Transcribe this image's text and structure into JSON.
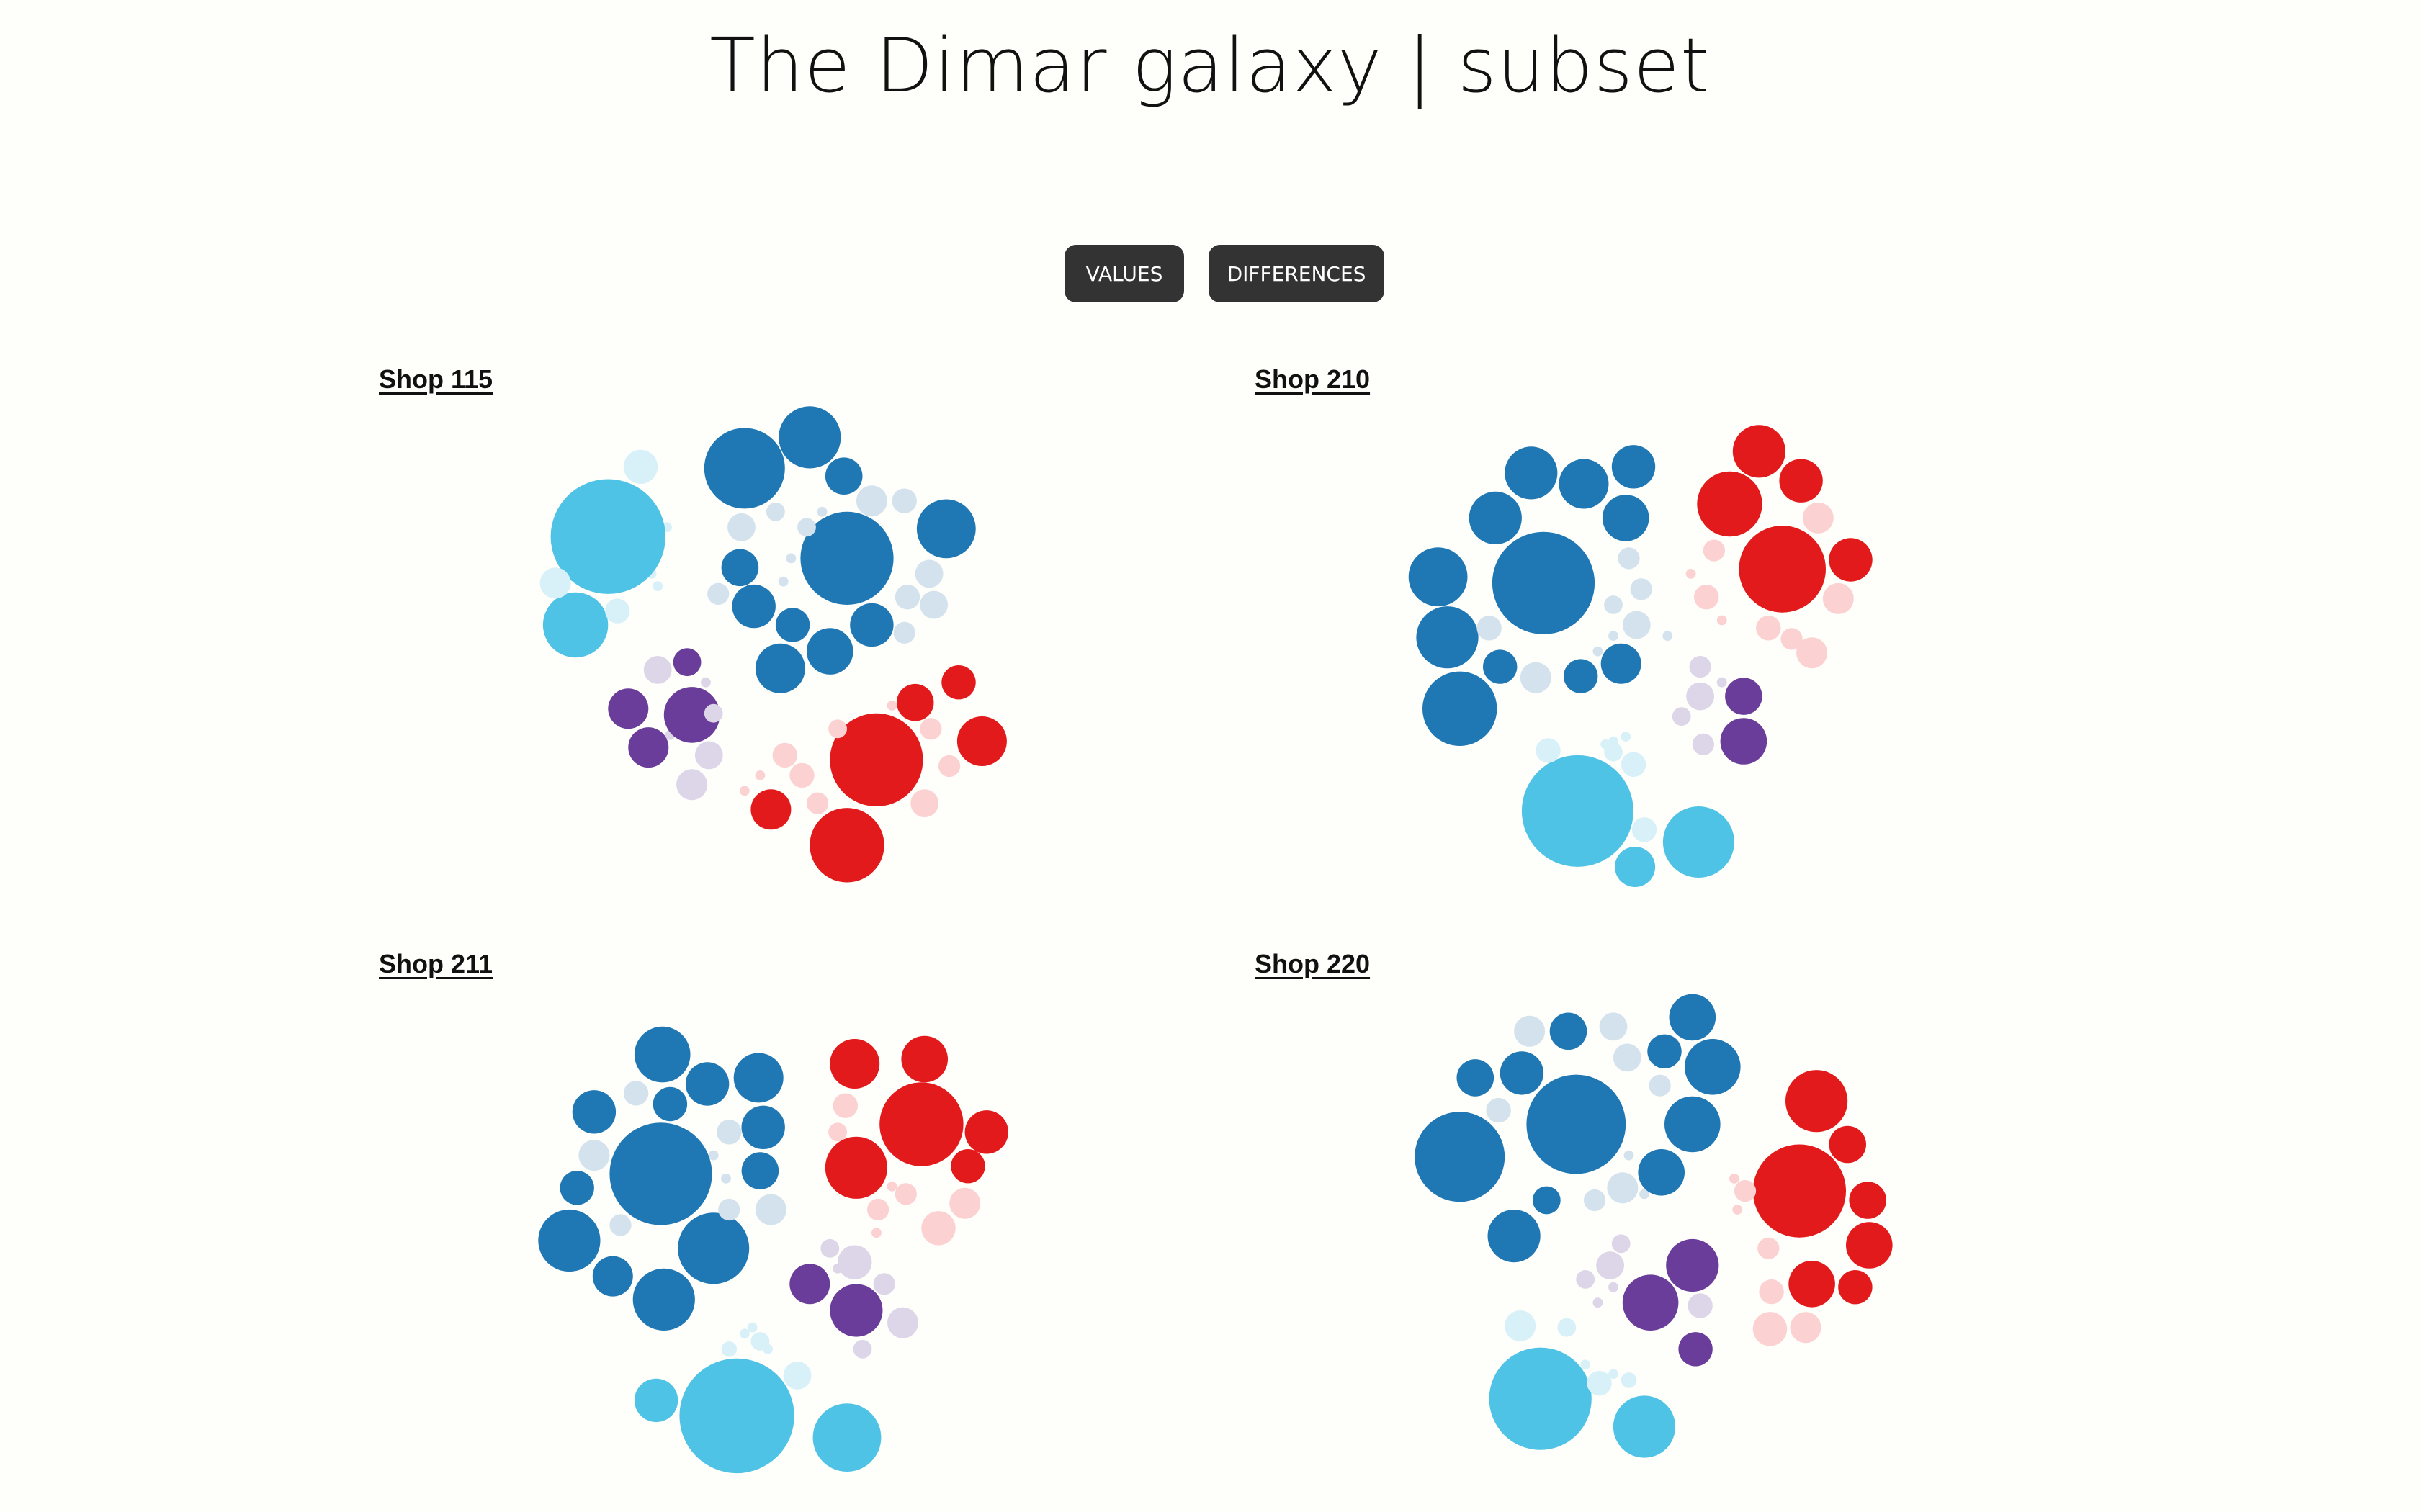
{
  "title": "The Dimar galaxy | subset",
  "buttons": {
    "values": "VALUES",
    "differences": "DIFFERENCES"
  },
  "colors": {
    "dark_blue": "#1f77b4",
    "light_blue_pale": "#d3e2ec",
    "cyan": "#4ec3e6",
    "cyan_pale": "#d8f1f8",
    "red": "#e31a1c",
    "red_pale": "#fbd1d2",
    "purple": "#6a3d9a",
    "purple_pale": "#ddd5e8"
  },
  "chart_data": [
    {
      "type": "packed-bubble",
      "title": "Shop 115",
      "clusters": [
        {
          "color": "dark_blue",
          "count": 16
        },
        {
          "color": "cyan",
          "count": 2
        },
        {
          "color": "red",
          "count": 5
        },
        {
          "color": "purple",
          "count": 4
        }
      ]
    },
    {
      "type": "packed-bubble",
      "title": "Shop 210",
      "clusters": [
        {
          "color": "dark_blue",
          "count": 15
        },
        {
          "color": "red",
          "count": 5
        },
        {
          "color": "purple",
          "count": 2
        },
        {
          "color": "cyan",
          "count": 3
        }
      ]
    },
    {
      "type": "packed-bubble",
      "title": "Shop 211",
      "clusters": [
        {
          "color": "dark_blue",
          "count": 16
        },
        {
          "color": "red",
          "count": 5
        },
        {
          "color": "purple",
          "count": 2
        },
        {
          "color": "cyan",
          "count": 3
        }
      ]
    },
    {
      "type": "packed-bubble",
      "title": "Shop 220",
      "clusters": [
        {
          "color": "dark_blue",
          "count": 13
        },
        {
          "color": "red",
          "count": 7
        },
        {
          "color": "purple",
          "count": 3
        },
        {
          "color": "cyan",
          "count": 2
        }
      ]
    }
  ]
}
